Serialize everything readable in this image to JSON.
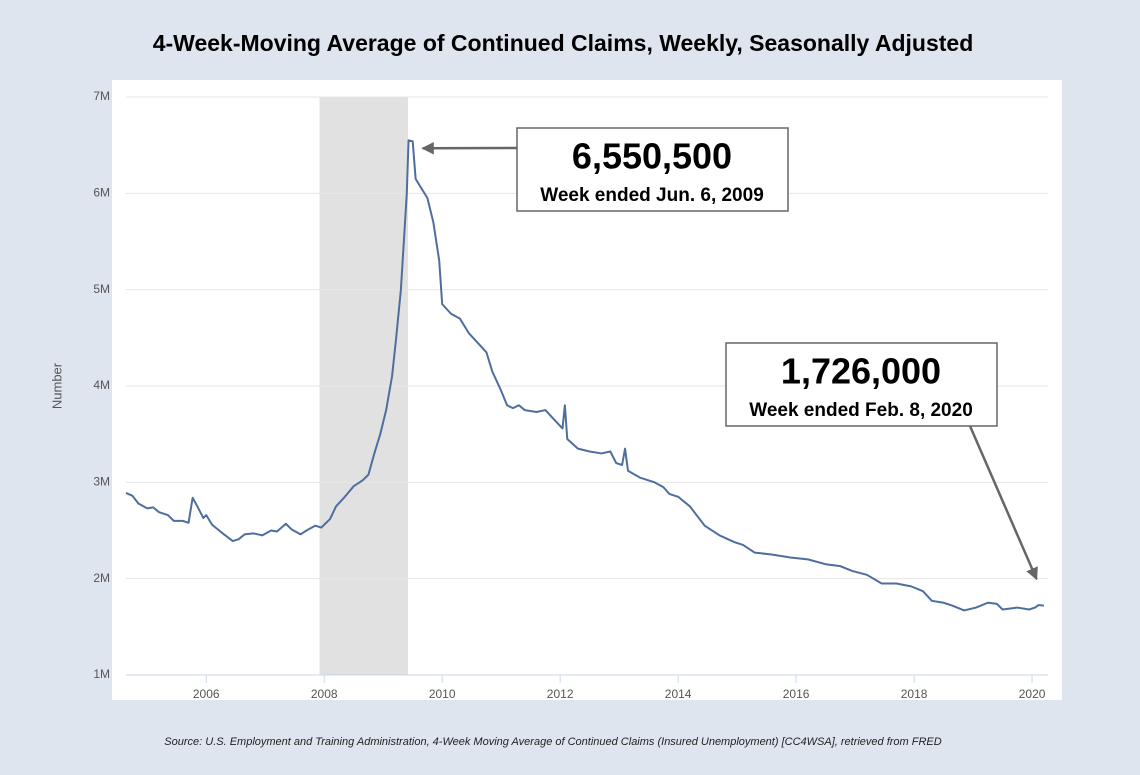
{
  "chart_data": {
    "type": "line",
    "title": "4-Week-Moving Average of Continued Claims, Weekly, Seasonally Adjusted",
    "ylabel": "Number",
    "source": "Source: U.S. Employment and Training Administration, 4-Week Moving Average of Continued Claims (Insured Unemployment) [CC4WSA], retrieved from FRED",
    "xlim": [
      2004.64,
      2020.27
    ],
    "xticks": [
      2006,
      2008,
      2010,
      2012,
      2014,
      2016,
      2018,
      2020
    ],
    "ylim": [
      1000000,
      7000000
    ],
    "yticks": [
      {
        "value": 1000000,
        "label": "1M"
      },
      {
        "value": 2000000,
        "label": "2M"
      },
      {
        "value": 3000000,
        "label": "3M"
      },
      {
        "value": 4000000,
        "label": "4M"
      },
      {
        "value": 5000000,
        "label": "5M"
      },
      {
        "value": 6000000,
        "label": "6M"
      },
      {
        "value": 7000000,
        "label": "7M"
      }
    ],
    "grid": true,
    "recession": {
      "start": 2007.92,
      "end": 2009.42,
      "color": "#e1e1e1"
    },
    "x": [
      2004.64,
      2004.75,
      2004.85,
      2005.0,
      2005.1,
      2005.2,
      2005.35,
      2005.45,
      2005.6,
      2005.7,
      2005.77,
      2005.85,
      2005.95,
      2006.0,
      2006.1,
      2006.3,
      2006.45,
      2006.55,
      2006.65,
      2006.8,
      2006.95,
      2007.1,
      2007.2,
      2007.35,
      2007.45,
      2007.6,
      2007.7,
      2007.85,
      2007.95,
      2008.1,
      2008.2,
      2008.35,
      2008.5,
      2008.65,
      2008.75,
      2008.85,
      2008.95,
      2009.05,
      2009.15,
      2009.22,
      2009.3,
      2009.35,
      2009.4,
      2009.43,
      2009.5,
      2009.55,
      2009.65,
      2009.75,
      2009.85,
      2009.95,
      2010.0,
      2010.15,
      2010.3,
      2010.45,
      2010.6,
      2010.75,
      2010.85,
      2011.0,
      2011.1,
      2011.2,
      2011.3,
      2011.4,
      2011.6,
      2011.75,
      2011.9,
      2012.04,
      2012.08,
      2012.12,
      2012.3,
      2012.5,
      2012.7,
      2012.85,
      2012.95,
      2013.05,
      2013.1,
      2013.15,
      2013.35,
      2013.6,
      2013.75,
      2013.85,
      2014.0,
      2014.2,
      2014.45,
      2014.7,
      2014.95,
      2015.1,
      2015.3,
      2015.6,
      2015.9,
      2016.2,
      2016.5,
      2016.75,
      2016.95,
      2017.2,
      2017.45,
      2017.7,
      2017.95,
      2018.15,
      2018.3,
      2018.5,
      2018.65,
      2018.85,
      2019.05,
      2019.25,
      2019.4,
      2019.5,
      2019.75,
      2019.95,
      2020.05,
      2020.11,
      2020.2
    ],
    "series": [
      {
        "name": "CC4WSA",
        "color": "#4e6e9e",
        "values": [
          2890000,
          2860000,
          2780000,
          2730000,
          2740000,
          2690000,
          2660000,
          2600000,
          2600000,
          2580000,
          2840000,
          2750000,
          2630000,
          2660000,
          2560000,
          2460000,
          2390000,
          2410000,
          2460000,
          2470000,
          2450000,
          2500000,
          2490000,
          2570000,
          2510000,
          2460000,
          2500000,
          2550000,
          2530000,
          2620000,
          2750000,
          2850000,
          2960000,
          3020000,
          3080000,
          3300000,
          3500000,
          3750000,
          4100000,
          4500000,
          5000000,
          5500000,
          6000000,
          6550500,
          6540000,
          6150000,
          6050000,
          5950000,
          5700000,
          5300000,
          4850000,
          4750000,
          4700000,
          4550000,
          4450000,
          4350000,
          4150000,
          3950000,
          3800000,
          3770000,
          3800000,
          3750000,
          3730000,
          3750000,
          3650000,
          3560000,
          3800000,
          3450000,
          3350000,
          3320000,
          3300000,
          3320000,
          3200000,
          3180000,
          3350000,
          3120000,
          3050000,
          3000000,
          2950000,
          2880000,
          2850000,
          2750000,
          2550000,
          2450000,
          2380000,
          2350000,
          2270000,
          2250000,
          2220000,
          2200000,
          2150000,
          2130000,
          2080000,
          2040000,
          1950000,
          1950000,
          1920000,
          1870000,
          1770000,
          1750000,
          1720000,
          1670000,
          1700000,
          1750000,
          1740000,
          1680000,
          1700000,
          1680000,
          1700000,
          1726000,
          1720000
        ]
      }
    ],
    "annotations": [
      {
        "label": "6,550,500",
        "sublabel": "Week ended Jun. 6, 2009",
        "x": 2009.43,
        "y": 6550500
      },
      {
        "label": "1,726,000",
        "sublabel": "Week ended Feb. 8, 2020",
        "x": 2020.11,
        "y": 1726000
      }
    ]
  }
}
